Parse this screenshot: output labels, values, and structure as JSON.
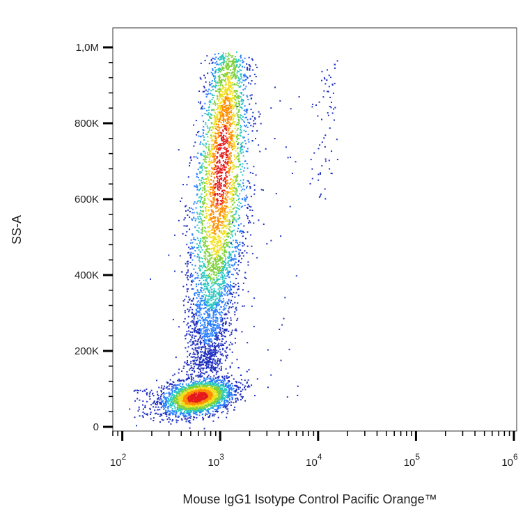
{
  "chart_data": {
    "type": "scatter",
    "title": "",
    "xlabel": "Mouse IgG1 Isotype Control Pacific Orange™",
    "ylabel": "SS-A",
    "x_scale": "log",
    "xlim": [
      80,
      1000000
    ],
    "ylim": [
      0,
      1000000
    ],
    "x_ticks": [
      {
        "value": 100,
        "base": "10",
        "exp": "2"
      },
      {
        "value": 1000,
        "base": "10",
        "exp": "3"
      },
      {
        "value": 10000,
        "base": "10",
        "exp": "4"
      },
      {
        "value": 100000,
        "base": "10",
        "exp": "5"
      },
      {
        "value": 1000000,
        "base": "10",
        "exp": "6"
      }
    ],
    "y_ticks": [
      {
        "value": 0,
        "label": "0"
      },
      {
        "value": 200000,
        "label": "200K"
      },
      {
        "value": 400000,
        "label": "400K"
      },
      {
        "value": 600000,
        "label": "600K"
      },
      {
        "value": 800000,
        "label": "800K"
      },
      {
        "value": 1000000,
        "label": "1,0M"
      }
    ],
    "grid": false,
    "colormap": "density (blue → cyan → green → yellow → red)",
    "populations": [
      {
        "center": [
          580,
          80000
        ],
        "x_range": [
          250,
          1100
        ],
        "y_range": [
          30000,
          140000
        ]
      },
      {
        "center": [
          1000,
          640000
        ],
        "x_range": [
          650,
          1700
        ],
        "y_range": [
          150000,
          980000
        ]
      },
      {
        "center": [
          12000,
          820000
        ],
        "x_range": [
          7000,
          17000
        ],
        "y_range": [
          600000,
          970000
        ]
      }
    ]
  }
}
